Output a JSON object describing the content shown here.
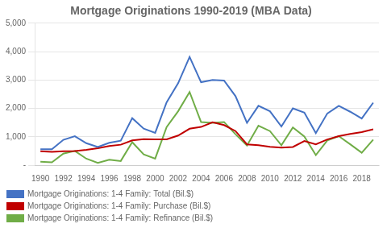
{
  "chart_data": {
    "type": "line",
    "title": "Mortgage Originations 1990-2019 (MBA Data)",
    "x": [
      1990,
      1991,
      1992,
      1993,
      1994,
      1995,
      1996,
      1997,
      1998,
      1999,
      2000,
      2001,
      2002,
      2003,
      2004,
      2005,
      2006,
      2007,
      2008,
      2009,
      2010,
      2011,
      2012,
      2013,
      2014,
      2015,
      2016,
      2017,
      2018,
      2019
    ],
    "series": [
      {
        "name": "Mortgage Originations: 1-4 Family: Total (Bil.$)",
        "color": "#4472C4",
        "values": [
          560,
          562,
          893,
          1020,
          773,
          639,
          785,
          859,
          1656,
          1285,
          1139,
          2215,
          2885,
          3812,
          2920,
          3000,
          2980,
          2430,
          1490,
          2090,
          1900,
          1360,
          2000,
          1850,
          1128,
          1820,
          2090,
          1880,
          1640,
          2200
        ]
      },
      {
        "name": "Mortgage Originations: 1-4 Family: Purchase (Bil.$)",
        "color": "#C00000",
        "values": [
          490,
          468,
          486,
          500,
          542,
          598,
          674,
          720,
          870,
          918,
          910,
          907,
          1041,
          1282,
          1345,
          1510,
          1410,
          1200,
          730,
          700,
          648,
          620,
          640,
          850,
          730,
          905,
          1020,
          1100,
          1165,
          1260
        ]
      },
      {
        "name": "Mortgage Originations: 1-4 Family: Refinance (Bil.$)",
        "color": "#70AD47",
        "values": [
          120,
          100,
          403,
          500,
          228,
          80,
          191,
          145,
          810,
          380,
          231,
          1340,
          1898,
          2576,
          1518,
          1490,
          1520,
          1090,
          690,
          1390,
          1200,
          700,
          1330,
          1010,
          353,
          870,
          1020,
          735,
          435,
          900
        ]
      }
    ],
    "xlim": [
      1989.5,
      2019.5
    ],
    "xticks": [
      1990,
      1992,
      1994,
      1996,
      1998,
      2000,
      2002,
      2004,
      2006,
      2008,
      2010,
      2012,
      2014,
      2016,
      2018
    ],
    "ylim": [
      0,
      5000
    ],
    "yticks": [
      {
        "value": 0,
        "label": "-"
      },
      {
        "value": 1000,
        "label": "1,000"
      },
      {
        "value": 2000,
        "label": "2,000"
      },
      {
        "value": 3000,
        "label": "3,000"
      },
      {
        "value": 4000,
        "label": "4,000"
      },
      {
        "value": 5000,
        "label": "5,000"
      }
    ],
    "grid": "y",
    "legend": "bottom"
  }
}
